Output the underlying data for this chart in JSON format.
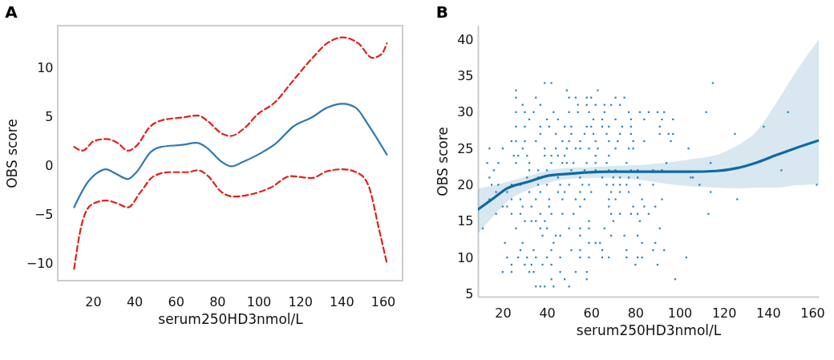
{
  "chart_data": [
    {
      "type": "line",
      "title": "A",
      "xlabel": "serum250HD3nmol/L",
      "ylabel": "OBS score",
      "xlim": [
        3,
        169.5
      ],
      "ylim": [
        -11.8,
        14.3
      ],
      "xticks": [
        20,
        40,
        60,
        80,
        100,
        120,
        140,
        160
      ],
      "yticks": [
        -10,
        -5,
        0,
        5,
        10
      ],
      "grid": false,
      "series": [
        {
          "color": "#2f78b3",
          "line_style": "solid",
          "x": [
            10.9,
            16.9,
            21.9,
            26.3,
            30.6,
            36.9,
            40.6,
            48.1,
            53.1,
            63.1,
            70,
            74.4,
            81.9,
            86.9,
            91.9,
            100.6,
            108.1,
            116.9,
            125.6,
            133.1,
            140.6,
            146.9,
            153.1,
            161.9
          ],
          "values": [
            -4.3,
            -1.9,
            -0.8,
            -0.4,
            -0.8,
            -1.4,
            -0.8,
            1.4,
            1.9,
            2.1,
            2.3,
            1.9,
            0.4,
            -0.1,
            0.3,
            1.2,
            2.2,
            4.0,
            4.9,
            5.9,
            6.3,
            5.9,
            4.1,
            1.1
          ]
        },
        {
          "color": "#e0201b",
          "line_style": "dashed",
          "x": [
            10.9,
            15,
            20.6,
            26.3,
            31.9,
            36.9,
            41.9,
            46.9,
            53.1,
            63.1,
            70.6,
            75.6,
            81.9,
            86.3,
            93.1,
            99.4,
            108.1,
            115.6,
            125.6,
            133.1,
            140.6,
            148.1,
            155,
            159.4,
            161.9
          ],
          "values": [
            1.9,
            1.5,
            2.5,
            2.7,
            2.3,
            1.5,
            2.2,
            3.8,
            4.6,
            4.9,
            5.1,
            4.5,
            3.3,
            3.0,
            3.8,
            5.2,
            6.5,
            8.4,
            10.9,
            12.5,
            13.1,
            12.5,
            11.0,
            11.4,
            12.5
          ]
        },
        {
          "color": "#e0201b",
          "line_style": "dashed",
          "x": [
            10.9,
            14.4,
            19.4,
            26.3,
            31.9,
            36.9,
            43.1,
            49.4,
            56.9,
            65.6,
            70.6,
            75.6,
            81.9,
            88.1,
            95.6,
            105.6,
            115.6,
            125.6,
            133.1,
            140.6,
            148.1,
            153.1,
            158.1,
            161.9
          ],
          "values": [
            -10.6,
            -6.2,
            -4.0,
            -3.6,
            -3.9,
            -4.3,
            -2.7,
            -1.1,
            -0.7,
            -0.7,
            -0.5,
            -1.1,
            -2.7,
            -3.2,
            -3.0,
            -2.3,
            -1.1,
            -1.3,
            -0.6,
            -0.4,
            -0.8,
            -2.1,
            -6.5,
            -10.0
          ]
        }
      ]
    },
    {
      "type": "scatter",
      "title": "B",
      "xlabel": "serum250HD3nmol/L",
      "ylabel": "OBS score",
      "xlim": [
        8.8,
        162.9
      ],
      "ylim": [
        4.6,
        41.9
      ],
      "xticks": [
        20,
        40,
        60,
        80,
        100,
        120,
        140,
        160
      ],
      "yticks": [
        5,
        10,
        15,
        20,
        25,
        30,
        35,
        40
      ],
      "grid": false,
      "series": [
        {
          "type": "scatter",
          "color": "#2a83b8",
          "x": [
            39,
            42,
            115,
            26,
            49,
            63,
            26,
            35,
            50,
            53,
            58,
            60,
            71,
            75,
            29,
            37,
            54,
            58,
            62,
            66,
            69,
            73,
            26,
            30,
            34,
            43,
            50,
            54,
            59,
            66,
            77,
            82,
            86,
            90,
            93,
            112,
            149,
            32,
            40,
            45,
            61,
            65,
            71,
            78,
            84,
            92,
            97,
            26,
            30,
            37,
            41,
            48,
            51,
            58,
            60,
            65,
            68,
            74,
            78,
            91,
            138,
            37,
            44,
            51,
            57,
            61,
            67,
            73,
            78,
            91,
            95,
            97,
            125,
            24,
            26,
            30,
            35,
            47,
            50,
            55,
            62,
            68,
            72,
            79,
            84,
            96,
            14,
            20,
            29,
            39,
            44,
            49,
            53,
            55,
            59,
            63,
            71,
            77,
            79,
            104,
            25,
            27,
            31,
            39,
            42,
            45,
            48,
            62,
            68,
            13,
            18,
            26,
            32,
            42,
            47,
            49,
            52,
            58,
            62,
            67,
            76,
            94,
            114,
            16,
            32,
            36,
            40,
            51,
            57,
            62,
            68,
            71,
            78,
            81,
            88,
            92,
            146,
            14,
            31,
            36,
            45,
            55,
            65,
            70,
            73,
            77,
            81,
            105,
            106,
            15,
            18,
            24,
            26,
            28,
            36,
            40,
            46,
            50,
            56,
            59,
            67,
            70,
            73,
            76,
            82,
            88,
            109,
            162,
            17,
            22,
            32,
            37,
            45,
            48,
            55,
            60,
            69,
            73,
            77,
            114,
            14,
            24,
            28,
            35,
            41,
            47,
            53,
            57,
            68,
            71,
            83,
            92,
            126,
            20,
            22,
            29,
            33,
            41,
            55,
            68,
            79,
            84,
            89,
            17,
            24,
            28,
            37,
            42,
            47,
            52,
            69,
            73,
            78,
            81,
            86,
            113,
            30,
            33,
            35,
            39,
            59,
            70,
            82,
            11,
            26,
            37,
            40,
            50,
            55,
            59,
            66,
            91,
            38,
            44,
            46,
            55,
            69,
            75,
            81,
            21,
            29,
            43,
            59,
            62,
            64,
            83,
            89,
            28,
            34,
            42,
            51,
            55,
            65,
            76,
            88,
            93,
            22,
            27,
            31,
            35,
            40,
            46,
            55,
            59,
            65,
            68,
            76,
            81,
            83,
            103,
            24,
            30,
            33,
            38,
            42,
            80,
            90,
            20,
            24,
            32,
            34,
            46,
            53,
            58,
            42,
            48,
            58,
            98,
            35,
            37,
            39,
            43,
            50
          ],
          "values": [
            34,
            34,
            34,
            33,
            33,
            33,
            32,
            32,
            32,
            32,
            32,
            32,
            32,
            32,
            31,
            31,
            31,
            31,
            31,
            31,
            31,
            31,
            30,
            30,
            30,
            30,
            30,
            30,
            30,
            30,
            30,
            30,
            30,
            30,
            30,
            30,
            30,
            29,
            29,
            29,
            29,
            29,
            29,
            29,
            29,
            29,
            29,
            28,
            28,
            28,
            28,
            28,
            28,
            28,
            28,
            28,
            28,
            28,
            28,
            28,
            28,
            27,
            27,
            27,
            27,
            27,
            27,
            27,
            27,
            27,
            27,
            27,
            27,
            26,
            26,
            26,
            26,
            26,
            26,
            26,
            26,
            26,
            26,
            26,
            26,
            26,
            25,
            25,
            25,
            25,
            25,
            25,
            25,
            25,
            25,
            25,
            25,
            25,
            25,
            25,
            24,
            24,
            24,
            24,
            24,
            24,
            24,
            24,
            24,
            23,
            23,
            23,
            23,
            23,
            23,
            23,
            23,
            23,
            23,
            23,
            23,
            23,
            23,
            22,
            22,
            22,
            22,
            22,
            22,
            22,
            22,
            22,
            22,
            22,
            22,
            22,
            22,
            21,
            21,
            21,
            21,
            21,
            21,
            21,
            21,
            21,
            21,
            21,
            21,
            20,
            20,
            20,
            20,
            20,
            20,
            20,
            20,
            20,
            20,
            20,
            20,
            20,
            20,
            20,
            20,
            20,
            20,
            20,
            19,
            19,
            19,
            19,
            19,
            19,
            19,
            19,
            19,
            19,
            19,
            19,
            18,
            18,
            18,
            18,
            18,
            18,
            18,
            18,
            18,
            18,
            18,
            18,
            18,
            17,
            17,
            17,
            17,
            17,
            17,
            17,
            17,
            17,
            17,
            16,
            16,
            16,
            16,
            16,
            16,
            16,
            16,
            16,
            16,
            16,
            16,
            16,
            15,
            15,
            15,
            15,
            15,
            15,
            15,
            14,
            14,
            14,
            14,
            14,
            14,
            14,
            14,
            14,
            13,
            13,
            13,
            13,
            13,
            13,
            13,
            12,
            12,
            12,
            12,
            12,
            12,
            12,
            12,
            11,
            11,
            11,
            11,
            11,
            11,
            11,
            11,
            11,
            10,
            10,
            10,
            10,
            10,
            10,
            10,
            10,
            10,
            10,
            10,
            10,
            10,
            10,
            9,
            9,
            9,
            9,
            9,
            9,
            9,
            8,
            8,
            8,
            8,
            8,
            8,
            8,
            7,
            7,
            7,
            7,
            6,
            6,
            6,
            6,
            6
          ]
        },
        {
          "type": "line",
          "color": "#0d6aa3",
          "x": [
            8.8,
            16.1,
            22,
            31.5,
            39.7,
            49.2,
            57.5,
            69.3,
            81.1,
            92.9,
            104.8,
            116.6,
            126,
            134.3,
            143.8,
            152,
            162.9
          ],
          "values": [
            16.6,
            18.2,
            19.5,
            20.4,
            21.2,
            21.5,
            21.7,
            21.8,
            21.8,
            21.8,
            21.8,
            21.9,
            22.3,
            23.0,
            24.1,
            25.0,
            26.1
          ],
          "lower": [
            13.3,
            15.8,
            17.7,
            19.3,
            20.2,
            20.8,
            20.9,
            21.0,
            20.7,
            20.2,
            19.8,
            19.6,
            19.5,
            19.6,
            19.6,
            19.9,
            20.1
          ],
          "upper": [
            19.5,
            19.9,
            20.4,
            21.2,
            21.9,
            22.3,
            22.4,
            22.6,
            22.7,
            23.0,
            23.5,
            24.1,
            25.4,
            27.2,
            31.3,
            35.3,
            40.0
          ]
        }
      ]
    }
  ]
}
